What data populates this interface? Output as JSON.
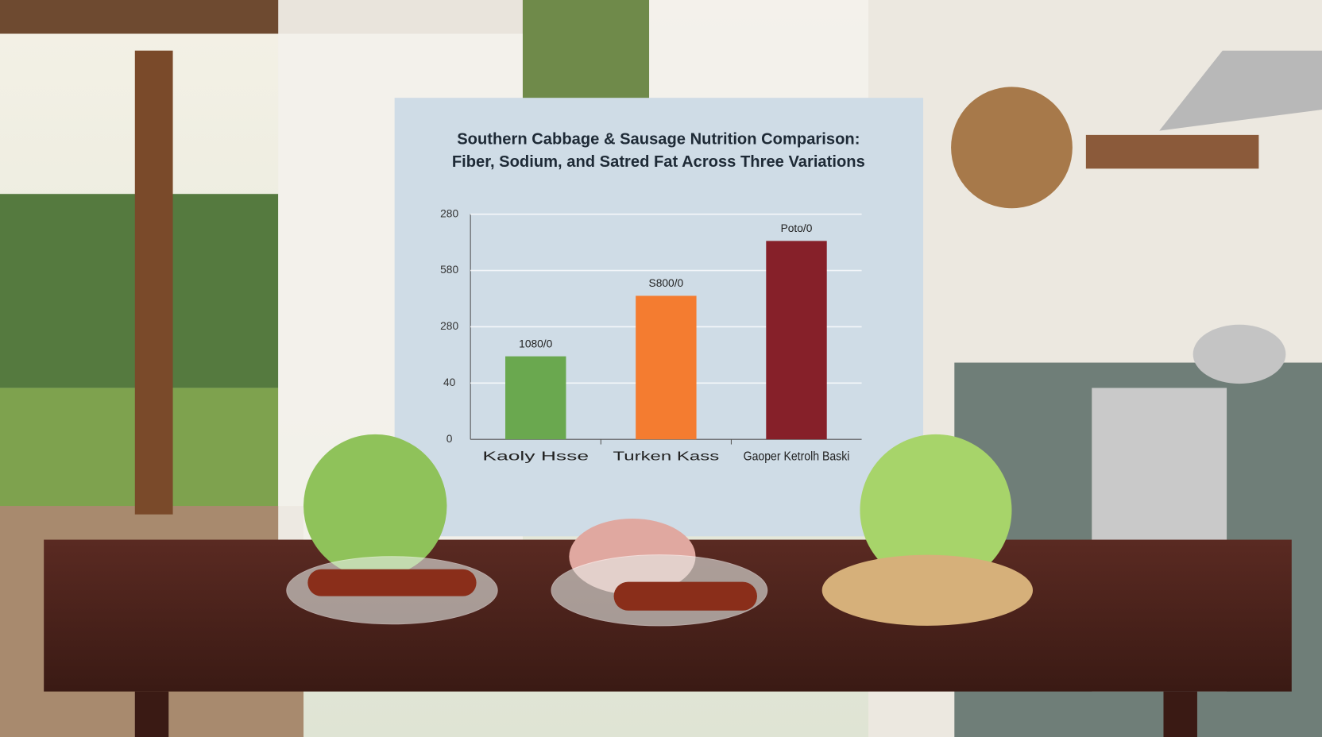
{
  "chart_data": {
    "type": "bar",
    "title": [
      "Southern Cabbage & Sausage Nutrition Comparison:",
      "Fiber, Sodium, and Satred Fat Across Three Variations"
    ],
    "categories": [
      "Kaoly Hsse",
      "Turken Kass",
      "Gaoper Ketrolh Baski"
    ],
    "values": [
      59,
      102,
      141
    ],
    "value_labels": [
      "1080/0",
      "S800/0",
      "Poto/0"
    ],
    "colors": [
      "#6aa84f",
      "#f47c30",
      "#862029"
    ],
    "ylim": [
      0,
      160
    ],
    "yticks": [
      0,
      {
        "value": 40,
        "label": "40"
      },
      {
        "value": 80,
        "label": "280"
      },
      {
        "value": 120,
        "label": "580"
      },
      {
        "value": 160,
        "label": "280"
      }
    ],
    "grid": true
  }
}
